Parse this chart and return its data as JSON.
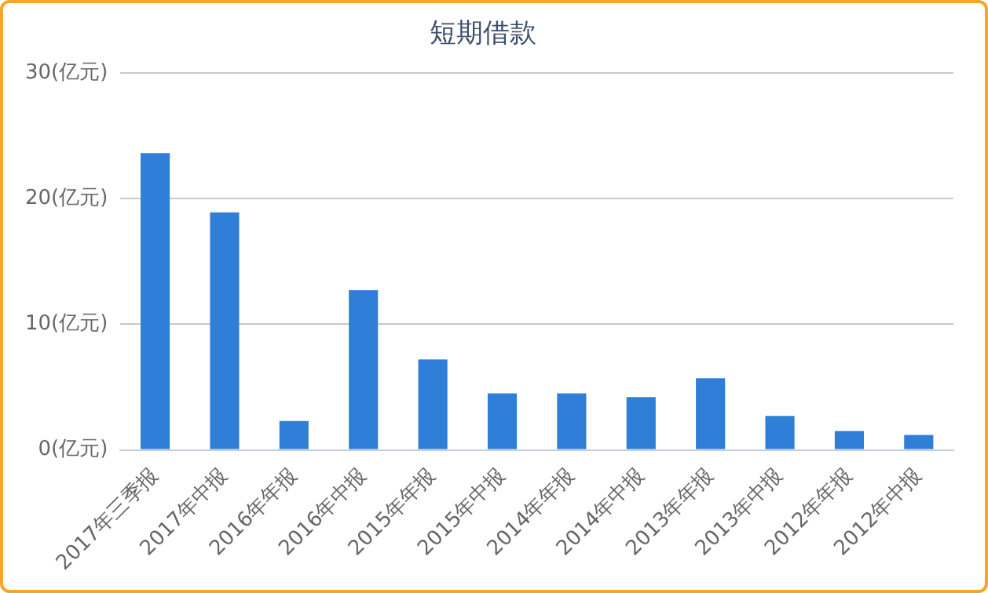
{
  "chart_data": {
    "type": "bar",
    "title": "短期借款",
    "categories": [
      "2017年三季报",
      "2017年中报",
      "2016年年报",
      "2016年中报",
      "2015年年报",
      "2015年中报",
      "2014年年报",
      "2014年中报",
      "2013年年报",
      "2013年中报",
      "2012年年报",
      "2012年中报"
    ],
    "values": [
      23.6,
      18.9,
      2.3,
      12.7,
      7.2,
      4.5,
      4.5,
      4.2,
      5.7,
      2.7,
      1.5,
      1.2
    ],
    "color": "#2f7ed8",
    "ylim": [
      0,
      30
    ],
    "yticks": [
      {
        "value": 0,
        "label": "0(亿元)"
      },
      {
        "value": 10,
        "label": "10(亿元)"
      },
      {
        "value": 20,
        "label": "20(亿元)"
      },
      {
        "value": 30,
        "label": "30(亿元)"
      }
    ],
    "grid": "y"
  }
}
